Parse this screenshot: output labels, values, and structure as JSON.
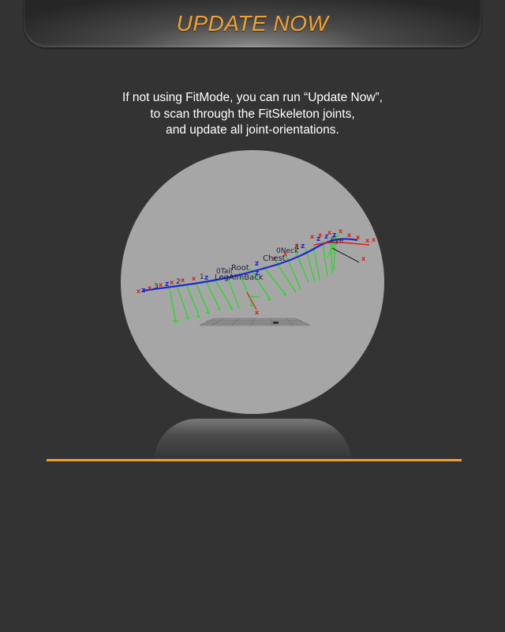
{
  "header": {
    "title": "UPDATE NOW",
    "accent_color": "#f0a030"
  },
  "description": {
    "line1": "If not using FitMode, you can run “Update Now”,",
    "line2": "to scan through the FitSkeleton joints,",
    "line3": "and update all joint-orientations."
  },
  "viewport": {
    "background_color": "#a6a6a6",
    "labels": {
      "root": "Root",
      "leg_aim_back": "LegAimBack",
      "tail": "0Tail",
      "chest": "Chest",
      "neck": "0Neck",
      "eye": "Eye",
      "spine_1": "1",
      "spine_2": "2",
      "spine_3": "3",
      "neck_1": "1",
      "axis_z": "z",
      "axis_x": "x"
    }
  }
}
